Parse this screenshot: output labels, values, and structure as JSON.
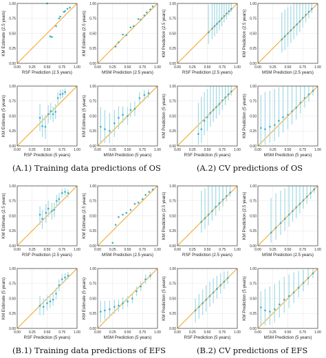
{
  "colors": {
    "diagonal": "#f2a623",
    "point": "#3aafc8",
    "errorbar": "#a8dbe6",
    "panel_border": "#333333",
    "grid": "#e6e6e6",
    "text": "#222222"
  },
  "captions": {
    "a1": "(A.1) Training data predictions of OS",
    "a2": "(A.2) CV predictions of OS",
    "b1": "(B.1) Training data predictions of EFS",
    "b2": "(B.2) CV predictions of EFS"
  },
  "chart_data": [
    {
      "id": "a1-rsf-25",
      "type": "scatter",
      "xlabel": "RSF Prediction (2.5 years)",
      "ylabel": "KM Estimate (2.5 years)",
      "xlim": [
        0,
        1
      ],
      "ylim": [
        0,
        1
      ],
      "xticks": [
        "0.00",
        "0.25",
        "0.50",
        "0.75",
        "1.00"
      ],
      "yticks": [
        "0.00",
        "0.25",
        "0.50",
        "0.75",
        "1.00"
      ],
      "grid": true,
      "x": [
        0.5,
        0.55,
        0.58,
        0.65,
        0.7,
        0.72,
        0.78,
        0.8,
        0.84,
        0.88
      ],
      "y": [
        1.0,
        0.45,
        0.44,
        0.62,
        0.75,
        0.78,
        0.86,
        0.87,
        0.91,
        0.93
      ],
      "err_low": [],
      "err_high": []
    },
    {
      "id": "a1-msm-25",
      "type": "scatter",
      "xlabel": "MSM Prediction (2.5 years)",
      "ylabel": "KM Estimate (2.5 years)",
      "xlim": [
        0,
        1
      ],
      "ylim": [
        0,
        1
      ],
      "xticks": [
        "0.00",
        "0.25",
        "0.50",
        "0.75",
        "1.00"
      ],
      "yticks": [
        "0.00",
        "0.25",
        "0.50",
        "0.75",
        "1.00"
      ],
      "grid": true,
      "x": [
        0.3,
        0.35,
        0.42,
        0.48,
        0.55,
        0.6,
        0.68,
        0.72,
        0.78,
        0.82,
        0.88,
        0.92
      ],
      "y": [
        0.28,
        0.35,
        0.48,
        0.47,
        0.6,
        0.62,
        0.74,
        0.73,
        0.8,
        0.85,
        0.9,
        0.95
      ],
      "err_low": [],
      "err_high": []
    },
    {
      "id": "a2-rsf-25",
      "type": "scatter",
      "xlabel": "RSF Prediction (2.5 years)",
      "ylabel": "KM Prediction (2.5 years)",
      "xlim": [
        0,
        1
      ],
      "ylim": [
        0,
        1
      ],
      "xticks": [
        "0.00",
        "0.25",
        "0.50",
        "0.75",
        "1.00"
      ],
      "yticks": [
        "0.00",
        "0.25",
        "0.50",
        "0.75",
        "1.00"
      ],
      "grid": true,
      "x": [
        0.52,
        0.58,
        0.62,
        0.66,
        0.7,
        0.74,
        0.78,
        0.82,
        0.86,
        0.9
      ],
      "y": [
        0.52,
        0.58,
        0.62,
        0.66,
        0.7,
        0.75,
        0.79,
        0.83,
        0.87,
        0.91
      ],
      "err_low": [
        0.32,
        0.4,
        0.45,
        0.5,
        0.55,
        0.62,
        0.68,
        0.74,
        0.8,
        0.86
      ],
      "err_high": [
        0.98,
        1.0,
        1.0,
        1.0,
        1.0,
        1.0,
        1.0,
        1.0,
        1.0,
        1.0
      ]
    },
    {
      "id": "a2-msm-25",
      "type": "scatter",
      "xlabel": "MSM Prediction (2.5 years)",
      "ylabel": "KM Prediction (2.5 years)",
      "xlim": [
        0,
        1
      ],
      "ylim": [
        0,
        1
      ],
      "xticks": [
        "0.00",
        "0.25",
        "0.50",
        "0.75",
        "1.00"
      ],
      "yticks": [
        "0.00",
        "0.25",
        "0.50",
        "0.75",
        "1.00"
      ],
      "grid": true,
      "x": [
        0.4,
        0.45,
        0.5,
        0.55,
        0.6,
        0.65,
        0.7,
        0.75,
        0.8,
        0.85,
        0.9
      ],
      "y": [
        0.4,
        0.45,
        0.5,
        0.55,
        0.6,
        0.65,
        0.7,
        0.76,
        0.81,
        0.86,
        0.91
      ],
      "err_low": [
        0.18,
        0.22,
        0.28,
        0.34,
        0.4,
        0.46,
        0.52,
        0.6,
        0.68,
        0.76,
        0.84
      ],
      "err_high": [
        0.85,
        0.9,
        0.94,
        0.97,
        1.0,
        1.0,
        1.0,
        1.0,
        1.0,
        1.0,
        1.0
      ]
    },
    {
      "id": "a1-rsf-5",
      "type": "scatter",
      "xlabel": "RSF Prediction (5 years)",
      "ylabel": "KM Estimate (5 years)",
      "xlim": [
        0,
        1
      ],
      "ylim": [
        0,
        1
      ],
      "xticks": [
        "0.00",
        "0.25",
        "0.50",
        "0.75",
        "1.00"
      ],
      "yticks": [
        "0.00",
        "0.25",
        "0.50",
        "0.75",
        "1.00"
      ],
      "grid": true,
      "x": [
        0.38,
        0.42,
        0.47,
        0.52,
        0.56,
        0.6,
        0.64,
        0.68,
        0.72,
        0.76,
        0.8
      ],
      "y": [
        0.47,
        0.33,
        0.32,
        0.53,
        0.58,
        0.53,
        0.57,
        0.8,
        0.86,
        0.87,
        0.9
      ],
      "err_low": [
        0.25,
        0.15,
        0.12,
        0.38,
        0.44,
        0.4,
        0.45,
        0.7,
        0.78,
        0.8,
        0.85
      ],
      "err_high": [
        0.7,
        0.52,
        0.52,
        0.68,
        0.72,
        0.66,
        0.7,
        0.9,
        0.94,
        0.94,
        0.96
      ]
    },
    {
      "id": "a1-msm-5",
      "type": "scatter",
      "xlabel": "MSM Prediction (5 years)",
      "ylabel": "KM Estimate (5 years)",
      "xlim": [
        0,
        1
      ],
      "ylim": [
        0,
        1
      ],
      "xticks": [
        "0.00",
        "0.25",
        "0.50",
        "0.75",
        "1.00"
      ],
      "yticks": [
        "0.00",
        "0.25",
        "0.50",
        "0.75",
        "1.00"
      ],
      "grid": true,
      "x": [
        0.05,
        0.12,
        0.2,
        0.28,
        0.35,
        0.42,
        0.5,
        0.55,
        0.62,
        0.7,
        0.78,
        0.85
      ],
      "y": [
        0.32,
        0.28,
        0.25,
        0.38,
        0.47,
        0.52,
        0.5,
        0.6,
        0.62,
        0.8,
        0.85,
        0.88
      ],
      "err_low": [
        0.05,
        0.05,
        0.05,
        0.15,
        0.28,
        0.38,
        0.35,
        0.48,
        0.5,
        0.7,
        0.76,
        0.8
      ],
      "err_high": [
        0.65,
        0.6,
        0.55,
        0.6,
        0.66,
        0.66,
        0.65,
        0.72,
        0.74,
        0.9,
        0.93,
        0.95
      ]
    },
    {
      "id": "a2-rsf-5",
      "type": "scatter",
      "xlabel": "RSF Prediction (5 years)",
      "ylabel": "KM Prediction (5 years)",
      "xlim": [
        0,
        1
      ],
      "ylim": [
        0,
        1
      ],
      "xticks": [
        "0.00",
        "0.25",
        "0.50",
        "0.75",
        "1.00"
      ],
      "yticks": [
        "0.00",
        "0.25",
        "0.50",
        "0.75",
        "1.00"
      ],
      "grid": true,
      "x": [
        0.35,
        0.4,
        0.45,
        0.5,
        0.55,
        0.6,
        0.65,
        0.7,
        0.75,
        0.8,
        0.85,
        0.9
      ],
      "y": [
        0.2,
        0.28,
        0.42,
        0.48,
        0.55,
        0.6,
        0.65,
        0.7,
        0.76,
        0.81,
        0.86,
        0.91
      ],
      "err_low": [
        0.02,
        0.05,
        0.18,
        0.25,
        0.32,
        0.4,
        0.46,
        0.52,
        0.6,
        0.68,
        0.76,
        0.84
      ],
      "err_high": [
        0.72,
        0.82,
        0.9,
        0.95,
        1.0,
        1.0,
        1.0,
        1.0,
        1.0,
        1.0,
        1.0,
        1.0
      ]
    },
    {
      "id": "a2-msm-5",
      "type": "scatter",
      "xlabel": "MSM Prediction (5 years)",
      "ylabel": "KM Prediction (5 years)",
      "xlim": [
        0,
        1
      ],
      "ylim": [
        0,
        1
      ],
      "xticks": [
        "0.00",
        "0.25",
        "0.50",
        "0.75",
        "1.00"
      ],
      "yticks": [
        "0.00",
        "0.25",
        "0.50",
        "0.75",
        "1.00"
      ],
      "grid": true,
      "x": [
        0.05,
        0.12,
        0.2,
        0.28,
        0.35,
        0.42,
        0.5,
        0.57,
        0.64,
        0.71,
        0.78,
        0.85,
        0.92
      ],
      "y": [
        0.3,
        0.28,
        0.32,
        0.35,
        0.42,
        0.48,
        0.52,
        0.58,
        0.64,
        0.72,
        0.8,
        0.86,
        0.92
      ],
      "err_low": [
        0.02,
        0.02,
        0.05,
        0.08,
        0.15,
        0.22,
        0.28,
        0.36,
        0.44,
        0.54,
        0.64,
        0.74,
        0.84
      ],
      "err_high": [
        0.85,
        0.9,
        0.92,
        0.95,
        0.98,
        1.0,
        1.0,
        1.0,
        1.0,
        1.0,
        1.0,
        1.0,
        1.0
      ]
    },
    {
      "id": "b1-rsf-25",
      "type": "scatter",
      "xlabel": "RSF Prediction (2.5 years)",
      "ylabel": "KM Estimate (2.5 years)",
      "xlim": [
        0,
        1
      ],
      "ylim": [
        0,
        1
      ],
      "xticks": [
        "0.00",
        "0.25",
        "0.50",
        "0.75",
        "1.00"
      ],
      "yticks": [
        "0.00",
        "0.25",
        "0.50",
        "0.75",
        "1.00"
      ],
      "grid": true,
      "x": [
        0.38,
        0.42,
        0.48,
        0.52,
        0.58,
        0.62,
        0.66,
        0.7,
        0.75,
        0.8,
        0.85
      ],
      "y": [
        0.52,
        0.45,
        0.55,
        0.62,
        0.58,
        0.6,
        0.75,
        0.78,
        0.88,
        0.9,
        0.88
      ],
      "err_low": [
        0.35,
        0.28,
        0.38,
        0.48,
        0.44,
        0.48,
        0.64,
        0.68,
        0.8,
        0.84,
        0.8
      ],
      "err_high": [
        0.66,
        0.6,
        0.7,
        0.75,
        0.72,
        0.72,
        0.85,
        0.88,
        0.95,
        0.96,
        0.94
      ]
    },
    {
      "id": "b1-msm-25",
      "type": "scatter",
      "xlabel": "MSM Prediction (2.5 years)",
      "ylabel": "KM Estimate (2.5 years)",
      "xlim": [
        0,
        1
      ],
      "ylim": [
        0,
        1
      ],
      "xticks": [
        "0.00",
        "0.25",
        "0.50",
        "0.75",
        "1.00"
      ],
      "yticks": [
        "0.00",
        "0.25",
        "0.50",
        "0.75",
        "1.00"
      ],
      "grid": true,
      "x": [
        0.25,
        0.3,
        0.35,
        0.42,
        0.48,
        0.55,
        0.62,
        0.68,
        0.75,
        0.8,
        0.86,
        0.92
      ],
      "y": [
        0.05,
        0.35,
        0.48,
        0.52,
        0.55,
        0.6,
        0.7,
        0.72,
        0.78,
        0.85,
        0.9,
        0.94
      ],
      "err_low": [],
      "err_high": []
    },
    {
      "id": "b2-rsf-25",
      "type": "scatter",
      "xlabel": "RSF Prediction (2.5 years)",
      "ylabel": "KM Prediction (2.5 years)",
      "xlim": [
        0,
        1
      ],
      "ylim": [
        0,
        1
      ],
      "xticks": [
        "0.00",
        "0.25",
        "0.50",
        "0.75",
        "1.00"
      ],
      "yticks": [
        "0.00",
        "0.25",
        "0.50",
        "0.75",
        "1.00"
      ],
      "grid": true,
      "x": [
        0.4,
        0.46,
        0.52,
        0.58,
        0.64,
        0.7,
        0.76,
        0.82,
        0.88
      ],
      "y": [
        0.4,
        0.46,
        0.52,
        0.58,
        0.65,
        0.71,
        0.77,
        0.83,
        0.89
      ],
      "err_low": [
        0.22,
        0.28,
        0.34,
        0.42,
        0.5,
        0.58,
        0.66,
        0.74,
        0.82
      ],
      "err_high": [
        0.92,
        0.96,
        1.0,
        1.0,
        1.0,
        1.0,
        1.0,
        1.0,
        1.0
      ]
    },
    {
      "id": "b2-msm-25",
      "type": "scatter",
      "xlabel": "MSM Prediction (2.5 years)",
      "ylabel": "KM Prediction (2.5 years)",
      "xlim": [
        0,
        1
      ],
      "ylim": [
        0,
        1
      ],
      "xticks": [
        "0.00",
        "0.25",
        "0.50",
        "0.75",
        "1.00"
      ],
      "yticks": [
        "0.00",
        "0.25",
        "0.50",
        "0.75",
        "1.00"
      ],
      "grid": true,
      "x": [
        0.22,
        0.3,
        0.38,
        0.45,
        0.52,
        0.58,
        0.64,
        0.7,
        0.76,
        0.82,
        0.88,
        0.94
      ],
      "y": [
        0.22,
        0.3,
        0.38,
        0.45,
        0.52,
        0.58,
        0.64,
        0.7,
        0.76,
        0.82,
        0.88,
        0.94
      ],
      "err_low": [
        0.05,
        0.1,
        0.18,
        0.25,
        0.32,
        0.4,
        0.46,
        0.54,
        0.62,
        0.7,
        0.78,
        0.88
      ],
      "err_high": [
        0.8,
        0.88,
        0.92,
        0.96,
        1.0,
        1.0,
        1.0,
        1.0,
        1.0,
        1.0,
        1.0,
        1.0
      ]
    },
    {
      "id": "b1-rsf-5",
      "type": "scatter",
      "xlabel": "RSF Prediction (5 years)",
      "ylabel": "KM Estimate (5 years)",
      "xlim": [
        0,
        1
      ],
      "ylim": [
        0,
        1
      ],
      "xticks": [
        "0.00",
        "0.25",
        "0.50",
        "0.75",
        "1.00"
      ],
      "yticks": [
        "0.00",
        "0.25",
        "0.50",
        "0.75",
        "1.00"
      ],
      "grid": true,
      "x": [
        0.38,
        0.44,
        0.5,
        0.55,
        0.6,
        0.65,
        0.7,
        0.75,
        0.8,
        0.85
      ],
      "y": [
        0.38,
        0.36,
        0.42,
        0.45,
        0.48,
        0.58,
        0.72,
        0.82,
        0.85,
        0.88
      ],
      "err_low": [
        0.22,
        0.22,
        0.3,
        0.34,
        0.38,
        0.48,
        0.62,
        0.74,
        0.78,
        0.82
      ],
      "err_high": [
        0.54,
        0.5,
        0.55,
        0.57,
        0.6,
        0.68,
        0.82,
        0.9,
        0.92,
        0.94
      ]
    },
    {
      "id": "b1-msm-5",
      "type": "scatter",
      "xlabel": "MSM Prediction (5 years)",
      "ylabel": "KM Estimate (5 years)",
      "xlim": [
        0,
        1
      ],
      "ylim": [
        0,
        1
      ],
      "xticks": [
        "0.00",
        "0.25",
        "0.50",
        "0.75",
        "1.00"
      ],
      "yticks": [
        "0.00",
        "0.25",
        "0.50",
        "0.75",
        "1.00"
      ],
      "grid": true,
      "x": [
        0.05,
        0.12,
        0.2,
        0.28,
        0.35,
        0.42,
        0.5,
        0.58,
        0.65,
        0.72,
        0.8,
        0.88
      ],
      "y": [
        0.28,
        0.3,
        0.32,
        0.36,
        0.38,
        0.42,
        0.45,
        0.5,
        0.62,
        0.7,
        0.82,
        0.88
      ],
      "err_low": [
        0.1,
        0.14,
        0.18,
        0.24,
        0.28,
        0.32,
        0.36,
        0.42,
        0.54,
        0.62,
        0.74,
        0.82
      ],
      "err_high": [
        0.46,
        0.46,
        0.46,
        0.48,
        0.48,
        0.52,
        0.54,
        0.58,
        0.7,
        0.78,
        0.9,
        0.94
      ]
    },
    {
      "id": "b2-rsf-5",
      "type": "scatter",
      "xlabel": "RSF Prediction (5 years)",
      "ylabel": "KM Prediction (5 years)",
      "xlim": [
        0,
        1
      ],
      "ylim": [
        0,
        1
      ],
      "xticks": [
        "0.00",
        "0.25",
        "0.50",
        "0.75",
        "1.00"
      ],
      "yticks": [
        "0.00",
        "0.25",
        "0.50",
        "0.75",
        "1.00"
      ],
      "grid": true,
      "x": [
        0.3,
        0.36,
        0.42,
        0.48,
        0.54,
        0.6,
        0.66,
        0.72,
        0.78,
        0.84
      ],
      "y": [
        0.3,
        0.36,
        0.42,
        0.48,
        0.54,
        0.6,
        0.66,
        0.72,
        0.78,
        0.84
      ],
      "err_low": [
        0.1,
        0.16,
        0.22,
        0.28,
        0.36,
        0.42,
        0.5,
        0.58,
        0.66,
        0.74
      ],
      "err_high": [
        0.5,
        0.58,
        0.65,
        0.72,
        0.78,
        0.84,
        0.88,
        0.92,
        0.95,
        0.96
      ]
    },
    {
      "id": "b2-msm-5",
      "type": "scatter",
      "xlabel": "MSM Prediction (5 years)",
      "ylabel": "KM Prediction (5 years)",
      "xlim": [
        0,
        1
      ],
      "ylim": [
        0,
        1
      ],
      "xticks": [
        "0.00",
        "0.25",
        "0.50",
        "0.75",
        "1.00"
      ],
      "yticks": [
        "0.00",
        "0.25",
        "0.50",
        "0.75",
        "1.00"
      ],
      "grid": true,
      "x": [
        0.05,
        0.12,
        0.2,
        0.28,
        0.36,
        0.44,
        0.52,
        0.6,
        0.68,
        0.76,
        0.84,
        0.92
      ],
      "y": [
        0.35,
        0.3,
        0.28,
        0.32,
        0.4,
        0.48,
        0.54,
        0.6,
        0.68,
        0.76,
        0.84,
        0.92
      ],
      "err_low": [
        0.05,
        0.05,
        0.06,
        0.1,
        0.18,
        0.26,
        0.34,
        0.42,
        0.52,
        0.62,
        0.72,
        0.84
      ],
      "err_high": [
        0.62,
        0.66,
        0.7,
        0.74,
        0.8,
        0.86,
        0.9,
        0.94,
        0.96,
        0.98,
        1.0,
        1.0
      ]
    }
  ]
}
